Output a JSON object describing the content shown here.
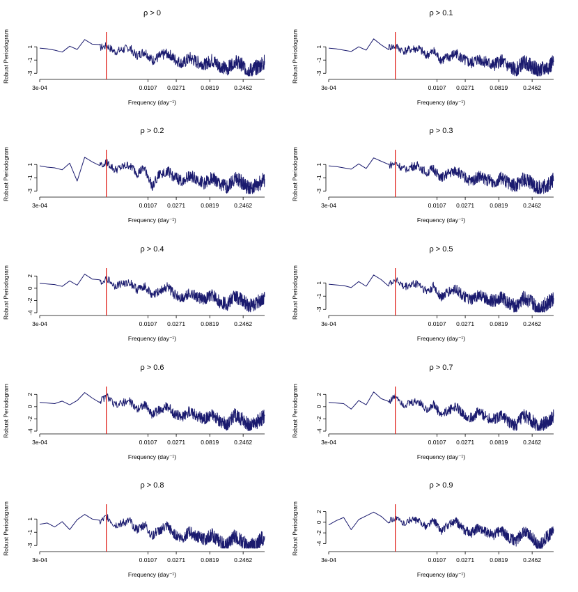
{
  "chart_data": [
    {
      "type": "line",
      "title": "ρ > 0",
      "xlabel": "Frequency (day⁻¹)",
      "ylabel": "Robust Periodogram",
      "x_scale": "log",
      "xlim": [
        0.0003,
        0.5
      ],
      "x_ticks": [
        "3e-04",
        "0.0107",
        "0.0271",
        "0.0819",
        "0.2462"
      ],
      "ylim": [
        -3.5,
        2.6
      ],
      "y_ticks": [
        1,
        -1,
        -3
      ],
      "peak_frequency": 0.0027,
      "series": [
        {
          "values": [
            0.8,
            0.7,
            0.5,
            0.2,
            1.1,
            0.6,
            2.1,
            1.4,
            0.9,
            1.2,
            0.3,
            0.6,
            0.9,
            -0.3,
            0.4,
            -1.0,
            -0.4,
            0.2,
            -0.8,
            -1.5,
            -0.6,
            -1.2,
            -1.6,
            -0.9,
            -1.8,
            -2.3,
            -1.1,
            -1.7,
            -2.6,
            -2.0,
            -1.2
          ]
        }
      ]
    },
    {
      "type": "line",
      "title": "ρ > 0.1",
      "xlabel": "Frequency (day⁻¹)",
      "ylabel": "Robust Periodogram",
      "x_scale": "log",
      "xlim": [
        0.0003,
        0.5
      ],
      "x_ticks": [
        "3e-04",
        "0.0107",
        "0.0271",
        "0.0819",
        "0.2462"
      ],
      "ylim": [
        -3.5,
        2.6
      ],
      "y_ticks": [
        1,
        -1,
        -3
      ],
      "peak_frequency": 0.0027,
      "series": [
        {
          "values": [
            0.8,
            0.7,
            0.5,
            0.3,
            1.0,
            0.5,
            2.2,
            1.3,
            1.0,
            1.1,
            0.4,
            0.7,
            0.8,
            -0.2,
            0.3,
            -0.9,
            -0.5,
            0.1,
            -0.9,
            -1.4,
            -0.7,
            -1.3,
            -1.7,
            -1.0,
            -1.9,
            -2.4,
            -1.2,
            -1.8,
            -2.5,
            -2.1,
            -1.3
          ]
        }
      ]
    },
    {
      "type": "line",
      "title": "ρ > 0.2",
      "xlabel": "Frequency (day⁻¹)",
      "ylabel": "Robust Periodogram",
      "x_scale": "log",
      "xlim": [
        0.0003,
        0.5
      ],
      "x_ticks": [
        "3e-04",
        "0.0107",
        "0.0271",
        "0.0819",
        "0.2462"
      ],
      "ylim": [
        -3.5,
        2.6
      ],
      "y_ticks": [
        1,
        -1,
        -3
      ],
      "peak_frequency": 0.0027,
      "series": [
        {
          "values": [
            0.8,
            0.6,
            0.5,
            0.2,
            1.2,
            -1.5,
            2.1,
            1.4,
            1.0,
            1.3,
            0.2,
            0.6,
            1.0,
            -0.3,
            0.5,
            -2.2,
            -0.4,
            0.1,
            -0.9,
            -1.4,
            -0.6,
            -1.1,
            -1.8,
            -0.9,
            -1.9,
            -2.3,
            -1.0,
            -1.6,
            -2.7,
            -2.0,
            -1.2
          ]
        }
      ]
    },
    {
      "type": "line",
      "title": "ρ > 0.3",
      "xlabel": "Frequency (day⁻¹)",
      "ylabel": "Robust Periodogram",
      "x_scale": "log",
      "xlim": [
        0.0003,
        0.5
      ],
      "x_ticks": [
        "3e-04",
        "0.0107",
        "0.0271",
        "0.0819",
        "0.2462"
      ],
      "ylim": [
        -3.5,
        2.6
      ],
      "y_ticks": [
        1,
        -1,
        -3
      ],
      "peak_frequency": 0.0027,
      "series": [
        {
          "values": [
            0.8,
            0.7,
            0.5,
            0.3,
            1.1,
            0.4,
            2.0,
            1.5,
            0.9,
            1.2,
            0.3,
            0.7,
            0.9,
            -0.2,
            0.4,
            -1.0,
            -0.3,
            0.2,
            -0.8,
            -1.5,
            -0.7,
            -1.2,
            -1.5,
            -1.0,
            -1.8,
            -2.2,
            -1.1,
            -1.7,
            -2.5,
            -2.1,
            -1.3
          ]
        }
      ]
    },
    {
      "type": "line",
      "title": "ρ > 0.4",
      "xlabel": "Frequency (day⁻¹)",
      "ylabel": "Robust Periodogram",
      "x_scale": "log",
      "xlim": [
        0.0003,
        0.5
      ],
      "x_ticks": [
        "3e-04",
        "0.0107",
        "0.0271",
        "0.0819",
        "0.2462"
      ],
      "ylim": [
        -4,
        2.6
      ],
      "y_ticks": [
        2,
        0,
        -2,
        -4
      ],
      "peak_frequency": 0.0027,
      "series": [
        {
          "values": [
            0.8,
            0.7,
            0.6,
            0.3,
            1.2,
            0.5,
            2.3,
            1.5,
            1.0,
            1.6,
            0.4,
            0.8,
            1.0,
            -0.2,
            0.5,
            -1.2,
            -0.3,
            0.2,
            -1.0,
            -1.6,
            -0.6,
            -1.4,
            -1.8,
            -1.0,
            -2.1,
            -2.6,
            -1.2,
            -1.9,
            -2.9,
            -2.2,
            -1.4
          ]
        }
      ]
    },
    {
      "type": "line",
      "title": "ρ > 0.5",
      "xlabel": "Frequency (day⁻¹)",
      "ylabel": "Robust Periodogram",
      "x_scale": "log",
      "xlim": [
        0.0003,
        0.5
      ],
      "x_ticks": [
        "3e-04",
        "0.0107",
        "0.0271",
        "0.0819",
        "0.2462"
      ],
      "ylim": [
        -3.5,
        2.6
      ],
      "y_ticks": [
        1,
        -1,
        -3
      ],
      "peak_frequency": 0.0027,
      "series": [
        {
          "values": [
            0.8,
            0.7,
            0.6,
            0.3,
            1.2,
            0.5,
            2.2,
            1.5,
            1.0,
            1.6,
            0.4,
            0.8,
            1.0,
            -0.2,
            0.5,
            -1.1,
            -0.3,
            0.2,
            -1.0,
            -1.6,
            -0.7,
            -1.3,
            -1.7,
            -1.0,
            -2.0,
            -2.5,
            -1.2,
            -1.8,
            -2.8,
            -2.1,
            -1.3
          ]
        }
      ]
    },
    {
      "type": "line",
      "title": "ρ > 0.6",
      "xlabel": "Frequency (day⁻¹)",
      "ylabel": "Robust Periodogram",
      "x_scale": "log",
      "xlim": [
        0.0003,
        0.5
      ],
      "x_ticks": [
        "3e-04",
        "0.0107",
        "0.0271",
        "0.0819",
        "0.2462"
      ],
      "ylim": [
        -4,
        2.6
      ],
      "y_ticks": [
        2,
        0,
        -2,
        -4
      ],
      "peak_frequency": 0.0027,
      "series": [
        {
          "values": [
            0.7,
            0.6,
            0.5,
            0.9,
            0.3,
            1.0,
            2.3,
            1.4,
            0.9,
            1.7,
            0.3,
            0.7,
            0.9,
            -0.3,
            0.4,
            -1.3,
            -0.4,
            0.1,
            -1.1,
            -1.7,
            -0.7,
            -1.5,
            -1.9,
            -1.1,
            -2.3,
            -2.8,
            -1.3,
            -2.0,
            -3.1,
            -2.4,
            -1.5
          ]
        }
      ]
    },
    {
      "type": "line",
      "title": "ρ > 0.7",
      "xlabel": "Frequency (day⁻¹)",
      "ylabel": "Robust Periodogram",
      "x_scale": "log",
      "xlim": [
        0.0003,
        0.5
      ],
      "x_ticks": [
        "3e-04",
        "0.0107",
        "0.0271",
        "0.0819",
        "0.2462"
      ],
      "ylim": [
        -4,
        2.6
      ],
      "y_ticks": [
        2,
        0,
        -2,
        -4
      ],
      "peak_frequency": 0.0027,
      "series": [
        {
          "values": [
            0.7,
            0.6,
            0.5,
            -0.4,
            1.0,
            0.3,
            2.4,
            1.3,
            0.8,
            1.8,
            0.3,
            0.6,
            0.9,
            -0.4,
            0.4,
            -1.4,
            -0.5,
            0.1,
            -1.2,
            -1.8,
            -0.8,
            -1.6,
            -2.0,
            -1.2,
            -2.4,
            -3.0,
            -1.4,
            -2.1,
            -3.3,
            -2.5,
            -1.6
          ]
        }
      ]
    },
    {
      "type": "line",
      "title": "ρ > 0.8",
      "xlabel": "Frequency (day⁻¹)",
      "ylabel": "Robust Periodogram",
      "x_scale": "log",
      "xlim": [
        0.0003,
        0.5
      ],
      "x_ticks": [
        "3e-04",
        "0.0107",
        "0.0271",
        "0.0819",
        "0.2462"
      ],
      "ylim": [
        -3.5,
        2.6
      ],
      "y_ticks": [
        1,
        -1,
        -3
      ],
      "peak_frequency": 0.0027,
      "series": [
        {
          "values": [
            0.2,
            0.4,
            -0.2,
            0.6,
            -0.6,
            0.9,
            1.7,
            1.0,
            0.5,
            1.4,
            0.1,
            0.4,
            0.7,
            -0.6,
            0.2,
            -1.5,
            -0.6,
            0.0,
            -1.2,
            -1.8,
            -0.9,
            -1.6,
            -2.0,
            -1.3,
            -2.4,
            -2.9,
            -1.5,
            -2.2,
            -3.2,
            -2.5,
            -1.6
          ]
        }
      ]
    },
    {
      "type": "line",
      "title": "ρ > 0.9",
      "xlabel": "Frequency (day⁻¹)",
      "ylabel": "Robust Periodogram",
      "x_scale": "log",
      "xlim": [
        0.0003,
        0.5
      ],
      "x_ticks": [
        "3e-04",
        "0.0107",
        "0.0271",
        "0.0819",
        "0.2462"
      ],
      "ylim": [
        -5,
        2.6
      ],
      "y_ticks": [
        2,
        0,
        -2,
        -4
      ],
      "peak_frequency": 0.0027,
      "series": [
        {
          "values": [
            -0.5,
            0.3,
            0.9,
            -1.4,
            0.5,
            1.2,
            1.9,
            1.1,
            0.4,
            0.8,
            -0.2,
            0.6,
            0.3,
            -0.8,
            0.5,
            -1.6,
            -0.4,
            0.2,
            -1.3,
            -2.0,
            -0.9,
            -1.8,
            -2.3,
            -1.4,
            -2.8,
            -3.5,
            -1.6,
            -2.4,
            -4.6,
            -2.8,
            -1.7
          ]
        }
      ]
    }
  ]
}
